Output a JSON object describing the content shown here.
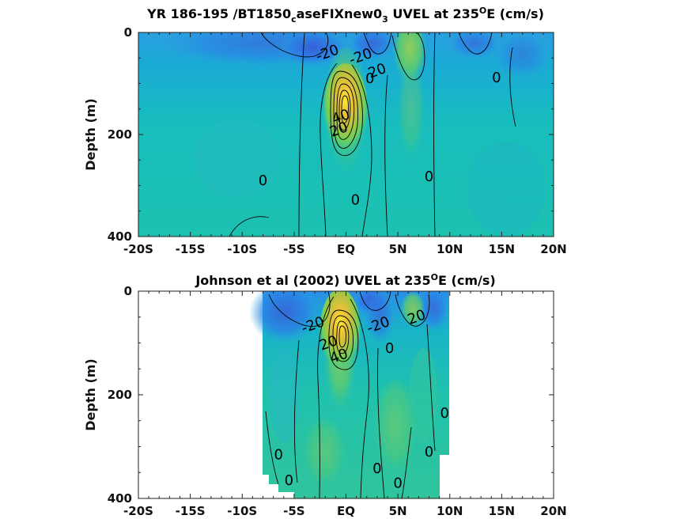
{
  "chart_data": [
    {
      "type": "heatmap",
      "title_prefix": "YR 186-195 /BT1850",
      "title_sub1": "c",
      "title_mid": "aseFIXnew0",
      "title_sub2": "3",
      "title_suffix": " UVEL at 235",
      "title_sup": "O",
      "title_end": "E (cm/s)",
      "xlabel": "",
      "ylabel": "Depth (m)",
      "x_ticks": [
        "-20S",
        "-15S",
        "-10S",
        "-5S",
        "EQ",
        "5N",
        "10N",
        "15N",
        "20N"
      ],
      "x_tick_values": [
        -20,
        -15,
        -10,
        -5,
        0,
        5,
        10,
        15,
        20
      ],
      "y_ticks": [
        "0",
        "200",
        "400"
      ],
      "y_tick_values": [
        0,
        200,
        400
      ],
      "xlim": [
        -20,
        20
      ],
      "ylim": [
        400,
        0
      ],
      "data_range": [
        -20,
        20
      ],
      "colormap": [
        "#3c3cc8",
        "#1f8fe8",
        "#16c3b8",
        "#6ad05e",
        "#d7c23a",
        "#fde72c"
      ],
      "contour_labels": [
        {
          "text": "-20",
          "lat": -1.8,
          "depth": 40
        },
        {
          "text": "-20",
          "lat": 1.4,
          "depth": 47
        },
        {
          "text": "20",
          "lat": 3.0,
          "depth": 75
        },
        {
          "text": "0",
          "lat": 2.3,
          "depth": 90
        },
        {
          "text": "0",
          "lat": 8.0,
          "depth": 282
        },
        {
          "text": "0",
          "lat": 14.5,
          "depth": 88
        },
        {
          "text": "0",
          "lat": -8.0,
          "depth": 290
        },
        {
          "text": "0",
          "lat": 0.9,
          "depth": 328
        },
        {
          "text": "40",
          "lat": -0.5,
          "depth": 165
        },
        {
          "text": "20",
          "lat": -0.7,
          "depth": 190
        }
      ],
      "contour_levels": [
        -20,
        0,
        20,
        40,
        60,
        80,
        100
      ],
      "fill_note": "",
      "data_lat_range": [
        -20,
        20
      ]
    },
    {
      "type": "heatmap",
      "title_prefix": "Johnson et al (2002) UVEL at 235",
      "title_sup": "O",
      "title_end": "E (cm/s)",
      "xlabel": "",
      "ylabel": "Depth (m)",
      "x_ticks": [
        "-20S",
        "-15S",
        "-10S",
        "-5S",
        "EQ",
        "5N",
        "10N",
        "15N",
        "20N"
      ],
      "x_tick_values": [
        -20,
        -15,
        -10,
        -5,
        0,
        5,
        10,
        15,
        20
      ],
      "y_ticks": [
        "0",
        "200",
        "400"
      ],
      "y_tick_values": [
        0,
        200,
        400
      ],
      "xlim": [
        -20,
        20
      ],
      "ylim": [
        400,
        0
      ],
      "data_range": [
        -20,
        20
      ],
      "data_lat_range": [
        -8,
        10
      ],
      "contour_labels": [
        {
          "text": "-20",
          "lat": -3.2,
          "depth": 65
        },
        {
          "text": "-20",
          "lat": 3.1,
          "depth": 65
        },
        {
          "text": "20",
          "lat": 6.8,
          "depth": 50
        },
        {
          "text": "0",
          "lat": 4.2,
          "depth": 110
        },
        {
          "text": "0",
          "lat": 9.5,
          "depth": 235
        },
        {
          "text": "0",
          "lat": -6.5,
          "depth": 315
        },
        {
          "text": "0",
          "lat": -5.5,
          "depth": 365
        },
        {
          "text": "0",
          "lat": 3.0,
          "depth": 342
        },
        {
          "text": "0",
          "lat": 5.0,
          "depth": 370
        },
        {
          "text": "0",
          "lat": 8.0,
          "depth": 310
        },
        {
          "text": "40",
          "lat": -0.7,
          "depth": 125
        },
        {
          "text": "20",
          "lat": -1.7,
          "depth": 100
        }
      ],
      "contour_levels": [
        -20,
        0,
        20,
        40,
        60,
        80,
        100
      ]
    }
  ]
}
